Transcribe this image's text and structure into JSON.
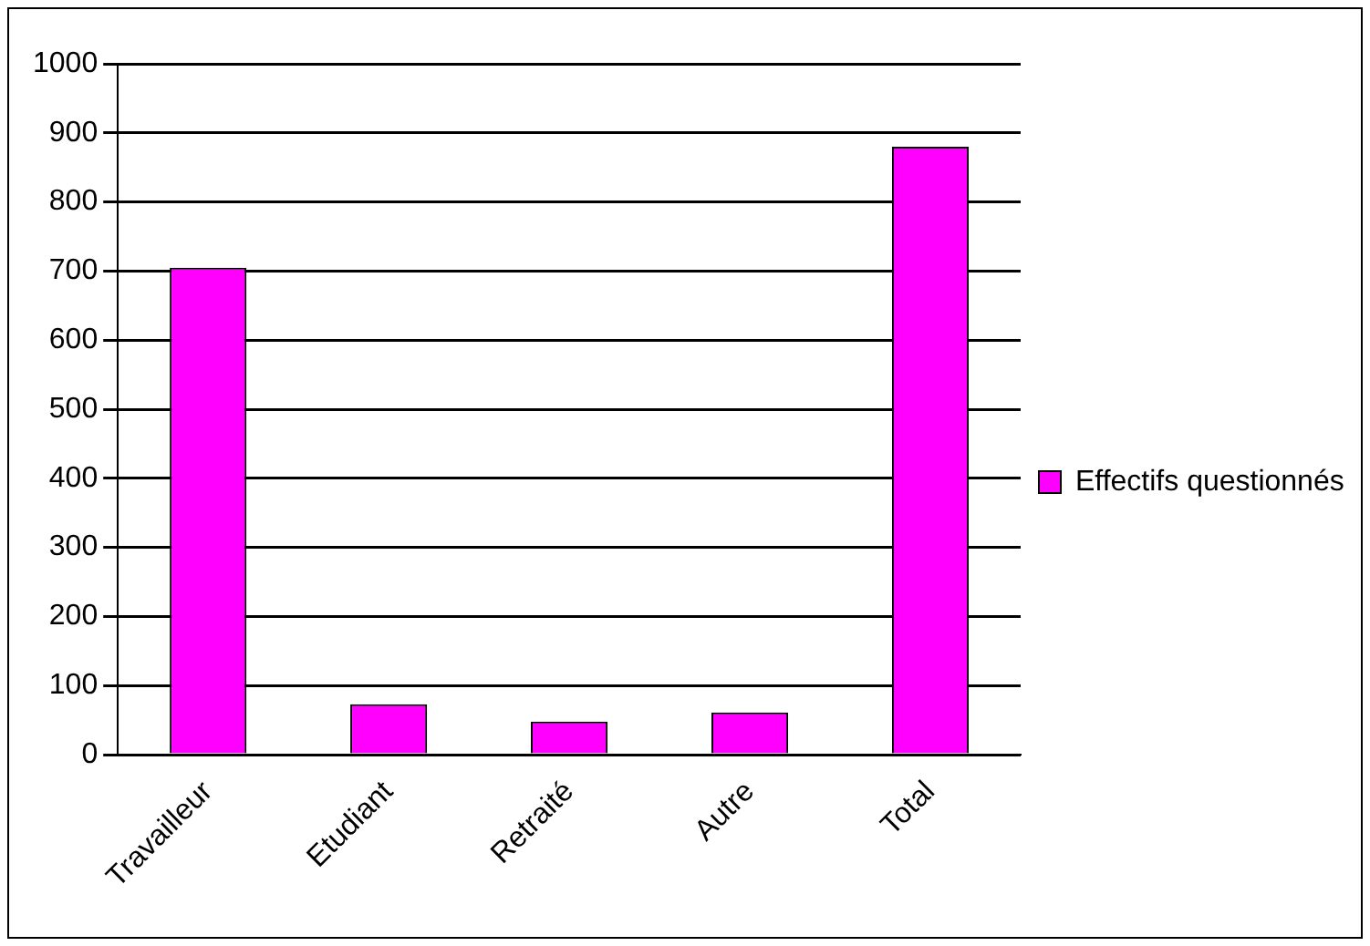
{
  "chart_data": {
    "type": "bar",
    "categories": [
      "Travailleur",
      "Etudiant",
      "Retraité",
      "Autre",
      "Total"
    ],
    "series": [
      {
        "name": "Effectifs questionnés",
        "color": "#ff00ff",
        "values": [
          705,
          73,
          48,
          61,
          880
        ]
      }
    ],
    "ylim": [
      0,
      1000
    ],
    "yticks": [
      0,
      100,
      200,
      300,
      400,
      500,
      600,
      700,
      800,
      900,
      1000
    ],
    "grid": "y",
    "legend": "right"
  }
}
